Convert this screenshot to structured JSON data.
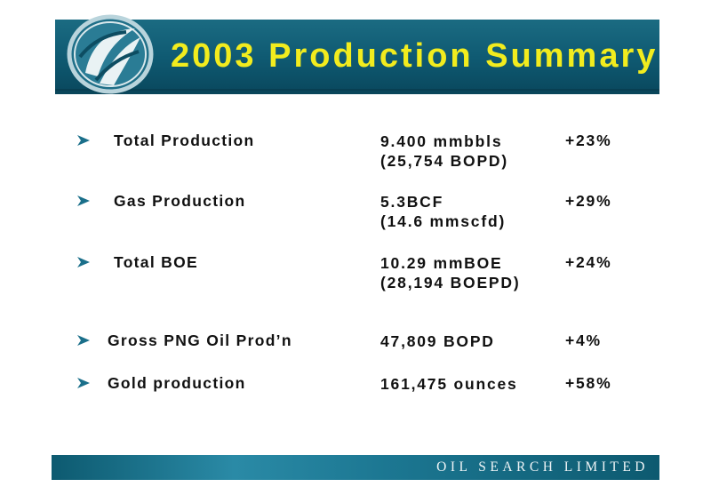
{
  "header": {
    "title": "2003 Production Summary",
    "title_color": "#f2ec1e",
    "bar_color": "#0f5a72"
  },
  "logo": {
    "icon": "oil-search-logo"
  },
  "rows": [
    {
      "label": "Total Production",
      "value_line1": "9.400 mmbbls",
      "value_line2": "(25,754 BOPD)",
      "change": "+23%"
    },
    {
      "label": "Gas Production",
      "value_line1": "5.3BCF",
      "value_line2": "(14.6 mmscfd)",
      "change": "+29%"
    },
    {
      "label": "Total BOE",
      "value_line1": "10.29 mmBOE",
      "value_line2": "(28,194 BOEPD)",
      "change": "+24%"
    },
    {
      "label": "Gross PNG Oil Prod’n",
      "value_line1": "47,809 BOPD",
      "change": "+4%"
    },
    {
      "label": "Gold production",
      "value_line1": "161,475 ounces",
      "change": "+58%"
    }
  ],
  "bullet_icon": "arrow-bullet-icon",
  "bullet_color": "#1a6f8a",
  "footer": {
    "text": "OIL SEARCH LIMITED"
  }
}
